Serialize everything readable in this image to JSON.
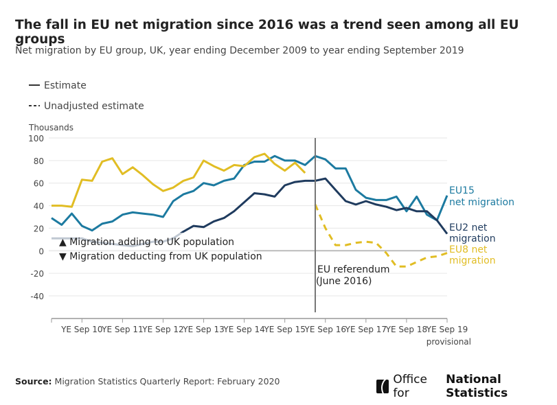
{
  "title": "The fall in EU net migration since 2016 was a trend seen among all EU groups",
  "subtitle": "Net migration by EU group, UK, year ending December 2009 to year ending September 2019",
  "legend": {
    "estimate": "Estimate",
    "unadjusted": "Unadjusted estimate"
  },
  "direction_legend": {
    "adding": "▲ Migration adding to UK population",
    "deducting": "▼ Migration deducting from UK population"
  },
  "annotation": {
    "line1": "EU referendum",
    "line2": "(June 2016)"
  },
  "source": {
    "label": "Source:",
    "text": "Migration Statistics Quarterly Report: February 2020"
  },
  "logo": {
    "text_regular": "Office for",
    "text_bold": "National Statistics"
  },
  "chart_data": {
    "type": "line",
    "ylabel": "Thousands",
    "ylim": [
      -40,
      100
    ],
    "yticks": [
      100,
      80,
      60,
      40,
      20,
      0,
      -20,
      -40
    ],
    "grid": true,
    "xticks": [
      "YE Sep 10",
      "YE Sep 11",
      "YE Sep 12",
      "YE Sep 13",
      "YE Sep 14",
      "YE Sep 15",
      "YE Sep 16",
      "YE Sep 17",
      "YE Sep 18",
      "YE Sep 19"
    ],
    "xtick_note": "provisional",
    "x": [
      "Dec 09",
      "Mar 10",
      "Jun 10",
      "Sep 10",
      "Dec 10",
      "Mar 11",
      "Jun 11",
      "Sep 11",
      "Dec 11",
      "Mar 12",
      "Jun 12",
      "Sep 12",
      "Dec 12",
      "Mar 13",
      "Jun 13",
      "Sep 13",
      "Dec 13",
      "Mar 14",
      "Jun 14",
      "Sep 14",
      "Dec 14",
      "Mar 15",
      "Jun 15",
      "Sep 15",
      "Dec 15",
      "Mar 16",
      "Jun 16",
      "Sep 16",
      "Dec 16",
      "Mar 17",
      "Jun 17",
      "Sep 17",
      "Dec 17",
      "Mar 18",
      "Jun 18",
      "Sep 18",
      "Dec 18",
      "Mar 19",
      "Jun 19",
      "Sep 19"
    ],
    "reference_line": {
      "x": "Jun 16",
      "label": "EU referendum (June 2016)"
    },
    "series": [
      {
        "name": "EU15 net migration",
        "color": "#1c7aa0",
        "style": "solid",
        "values": [
          29,
          23,
          33,
          22,
          18,
          24,
          26,
          32,
          34,
          33,
          32,
          30,
          44,
          50,
          53,
          60,
          58,
          62,
          64,
          76,
          79,
          79,
          84,
          80,
          80,
          76,
          84,
          81,
          73,
          73,
          54,
          47,
          45,
          45,
          48,
          35,
          48,
          32,
          27,
          49
        ]
      },
      {
        "name": "EU2 net migration",
        "color": "#1f3b5e",
        "style": "solid",
        "values": [
          11,
          11,
          11,
          11,
          8,
          7,
          6,
          5,
          4,
          6,
          8,
          8,
          11,
          17,
          22,
          21,
          26,
          29,
          35,
          43,
          51,
          50,
          48,
          58,
          61,
          62,
          62,
          64,
          54,
          44,
          41,
          44,
          41,
          39,
          36,
          38,
          35,
          35,
          27,
          15
        ]
      },
      {
        "name": "EU8 net migration",
        "color": "#e1bd24",
        "style": "solid",
        "values": [
          40,
          40,
          39,
          63,
          62,
          79,
          82,
          68,
          74,
          67,
          59,
          53,
          56,
          62,
          65,
          80,
          75,
          71,
          76,
          75,
          83,
          86,
          77,
          71,
          78,
          69,
          null,
          null,
          null,
          null,
          null,
          null,
          null,
          null,
          null,
          null,
          null,
          null,
          null,
          null
        ]
      },
      {
        "name": "EU8 net migration (unadjusted)",
        "color": "#e1bd24",
        "style": "dashed",
        "values": [
          null,
          null,
          null,
          null,
          null,
          null,
          null,
          null,
          null,
          null,
          null,
          null,
          null,
          null,
          null,
          null,
          null,
          null,
          null,
          null,
          null,
          null,
          null,
          null,
          null,
          null,
          41,
          20,
          5,
          5,
          7,
          8,
          7,
          -2,
          -14,
          -14,
          -10,
          -6,
          -5,
          -2
        ]
      }
    ],
    "series_labels": {
      "eu15": [
        "EU15",
        "net migration"
      ],
      "eu2": [
        "EU2 net",
        "migration"
      ],
      "eu8": [
        "EU8 net",
        "migration"
      ]
    }
  }
}
